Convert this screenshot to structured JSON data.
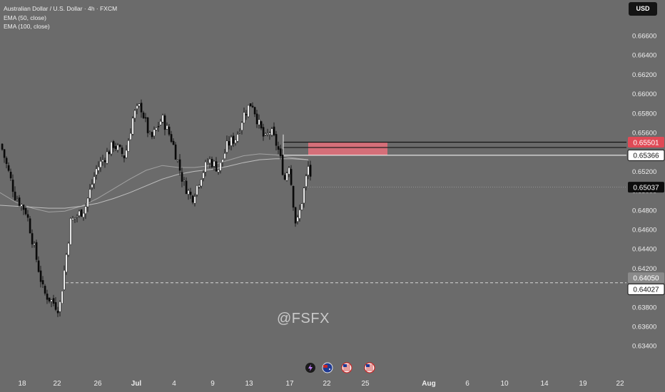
{
  "header": {
    "symbol_title": "Australian Dollar / U.S. Dollar · 4h · FXCM",
    "indicator_1": "EMA (50, close)",
    "indicator_2": "EMA (100, close)",
    "currency_button": "USD"
  },
  "watermark": "@FSFX",
  "colors": {
    "background": "#6b6b6b",
    "candle_up": "#ffffff",
    "candle_down": "#0a0a0a",
    "sell_zone": "#e8707b",
    "current_price_tag": "#0d0d0d",
    "price_line": "#d9d9d9"
  },
  "event_icons": [
    "lightning-icon",
    "au-flag-icon",
    "us-flag-icon",
    "us-flag-icon"
  ],
  "chart_data": {
    "type": "candlestick",
    "title": "Australian Dollar / U.S. Dollar · 4h · FXCM",
    "timeframe": "4h",
    "x_ticks": [
      "18",
      "22",
      "26",
      "Jul",
      "4",
      "9",
      "13",
      "17",
      "22",
      "25",
      "Aug",
      "6",
      "10",
      "14",
      "19",
      "22"
    ],
    "y_ticks": [
      0.666,
      0.664,
      0.662,
      0.66,
      0.658,
      0.656,
      0.654,
      0.652,
      0.65,
      0.648,
      0.646,
      0.644,
      0.642,
      0.638,
      0.636,
      0.634
    ],
    "y_range": [
      0.6325,
      0.6683
    ],
    "price_tags": [
      {
        "label": "0.65501",
        "value": 0.65501,
        "role": "sell-zone-top"
      },
      {
        "label": "0.65366",
        "value": 0.65366,
        "role": "entry"
      },
      {
        "label": "0.65037",
        "value": 0.65037,
        "role": "current-price"
      },
      {
        "label": "0.64050",
        "value": 0.6405,
        "role": "target"
      },
      {
        "label": "0.64027",
        "value": 0.64027,
        "role": "dashed-level"
      }
    ],
    "horizontal_lines": [
      0.65501,
      0.65446,
      0.65366
    ],
    "sell_zone": {
      "from": 0.65366,
      "to": 0.65501
    },
    "target_zone": {
      "from": 0.6405,
      "to": 0.65366
    },
    "current_price": 0.65037,
    "swing_points": [
      {
        "date": "Jun 17",
        "price": 0.6548
      },
      {
        "date": "Jun 19",
        "price": 0.6495
      },
      {
        "date": "Jun 21",
        "price": 0.6478
      },
      {
        "date": "Jun 22",
        "price": 0.6395
      },
      {
        "date": "Jun 23",
        "price": 0.6378
      },
      {
        "date": "Jun 24",
        "price": 0.6468
      },
      {
        "date": "Jun 25",
        "price": 0.6482
      },
      {
        "date": "Jun 26",
        "price": 0.6522
      },
      {
        "date": "Jun 27",
        "price": 0.6548
      },
      {
        "date": "Jun 28",
        "price": 0.6535
      },
      {
        "date": "Jun 30",
        "price": 0.6578
      },
      {
        "date": "Jul 1",
        "price": 0.6588
      },
      {
        "date": "Jul 2",
        "price": 0.6552
      },
      {
        "date": "Jul 3",
        "price": 0.6575
      },
      {
        "date": "Jul 4",
        "price": 0.6552
      },
      {
        "date": "Jul 5",
        "price": 0.6508
      },
      {
        "date": "Jul 6",
        "price": 0.6492
      },
      {
        "date": "Jul 7",
        "price": 0.6518
      },
      {
        "date": "Jul 8",
        "price": 0.6532
      },
      {
        "date": "Jul 9",
        "price": 0.6522
      },
      {
        "date": "Jul 10",
        "price": 0.6548
      },
      {
        "date": "Jul 11",
        "price": 0.6555
      },
      {
        "date": "Jul 12",
        "price": 0.6578
      },
      {
        "date": "Jul 13",
        "price": 0.6592
      },
      {
        "date": "Jul 14",
        "price": 0.6572
      },
      {
        "date": "Jul 15",
        "price": 0.6552
      },
      {
        "date": "Jul 16",
        "price": 0.6562
      },
      {
        "date": "Jul 16.5",
        "price": 0.6545
      },
      {
        "date": "Jul 17",
        "price": 0.6512
      },
      {
        "date": "Jul 17.5",
        "price": 0.6528
      },
      {
        "date": "Jul 18",
        "price": 0.6488
      },
      {
        "date": "Jul 18.3",
        "price": 0.6462
      },
      {
        "date": "Jul 18.6",
        "price": 0.6482
      },
      {
        "date": "Jul 19",
        "price": 0.6505
      },
      {
        "date": "Jul 19.3",
        "price": 0.6528
      },
      {
        "date": "Jul 19.6",
        "price": 0.6504
      }
    ],
    "series": [
      {
        "name": "EMA (50, close)",
        "values": [
          0.6498,
          0.6488,
          0.6482,
          0.6478,
          0.6479,
          0.6484,
          0.6492,
          0.6502,
          0.6512,
          0.6521,
          0.6526,
          0.6524,
          0.6524,
          0.6526,
          0.6531,
          0.6536,
          0.6538,
          0.6537,
          0.6534,
          0.6532
        ]
      },
      {
        "name": "EMA (100, close)",
        "values": [
          0.6485,
          0.6484,
          0.6483,
          0.6482,
          0.6482,
          0.6484,
          0.6487,
          0.6492,
          0.6498,
          0.6505,
          0.6512,
          0.6517,
          0.652,
          0.6522,
          0.6525,
          0.6529,
          0.6532,
          0.6533,
          0.6533,
          0.6532
        ]
      }
    ]
  }
}
